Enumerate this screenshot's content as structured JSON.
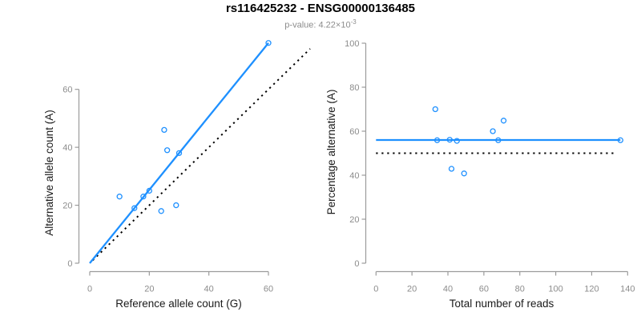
{
  "header": {
    "title": "rs116425232 - ENSG00000136485",
    "subtitle_prefix": "p-value: 4.22×10",
    "subtitle_exponent": "-3"
  },
  "colors": {
    "point_blue": "#1E90FF",
    "line_blue": "#1E90FF",
    "dotted_black": "#000000",
    "axis_gray": "#9b9b9b",
    "tick_text_gray": "#8c8c8c",
    "axis_title_dark": "#1a1a1a"
  },
  "chart_data": [
    {
      "type": "scatter",
      "name": "allele-counts-scatter",
      "xlabel": "Reference allele count (G)",
      "ylabel": "Alternative allele count (A)",
      "xlim": [
        0,
        60
      ],
      "ylim": [
        0,
        60
      ],
      "xticks": [
        0,
        20,
        40,
        60
      ],
      "yticks": [
        0,
        20,
        40,
        60
      ],
      "grid": false,
      "legend": null,
      "points": [
        [
          10,
          23
        ],
        [
          15,
          19
        ],
        [
          18,
          23
        ],
        [
          20,
          25
        ],
        [
          24,
          18
        ],
        [
          25,
          46
        ],
        [
          26,
          39
        ],
        [
          29,
          20
        ],
        [
          30,
          38
        ],
        [
          60,
          76
        ]
      ],
      "lines": [
        {
          "name": "identity-line",
          "style": "dotted",
          "color": "#000000",
          "x1": 1,
          "y1": 1,
          "x2": 74,
          "y2": 74
        },
        {
          "name": "fit-line",
          "style": "solid",
          "color": "#1E90FF",
          "x1": 0,
          "y1": 0,
          "x2": 60,
          "y2": 76
        }
      ]
    },
    {
      "type": "scatter",
      "name": "percentage-vs-reads-scatter",
      "xlabel": "Total number of reads",
      "ylabel": "Percentage alternative (A)",
      "xlim": [
        0,
        140
      ],
      "ylim": [
        0,
        100
      ],
      "xticks": [
        0,
        20,
        40,
        60,
        80,
        100,
        120,
        140
      ],
      "yticks": [
        0,
        20,
        40,
        60,
        80,
        100
      ],
      "grid": false,
      "legend": null,
      "points": [
        [
          33,
          70
        ],
        [
          34,
          55.9
        ],
        [
          41,
          56.1
        ],
        [
          42,
          42.9
        ],
        [
          45,
          55.6
        ],
        [
          49,
          40.8
        ],
        [
          65,
          60
        ],
        [
          68,
          55.9
        ],
        [
          71,
          64.8
        ],
        [
          136,
          55.9
        ]
      ],
      "lines": [
        {
          "name": "fifty-percent-line",
          "style": "dotted",
          "color": "#000000",
          "x1": 0,
          "y1": 50,
          "x2": 133,
          "y2": 50
        },
        {
          "name": "mean-percentage-line",
          "style": "solid",
          "color": "#1E90FF",
          "x1": 0,
          "y1": 56,
          "x2": 136,
          "y2": 56
        }
      ]
    }
  ]
}
